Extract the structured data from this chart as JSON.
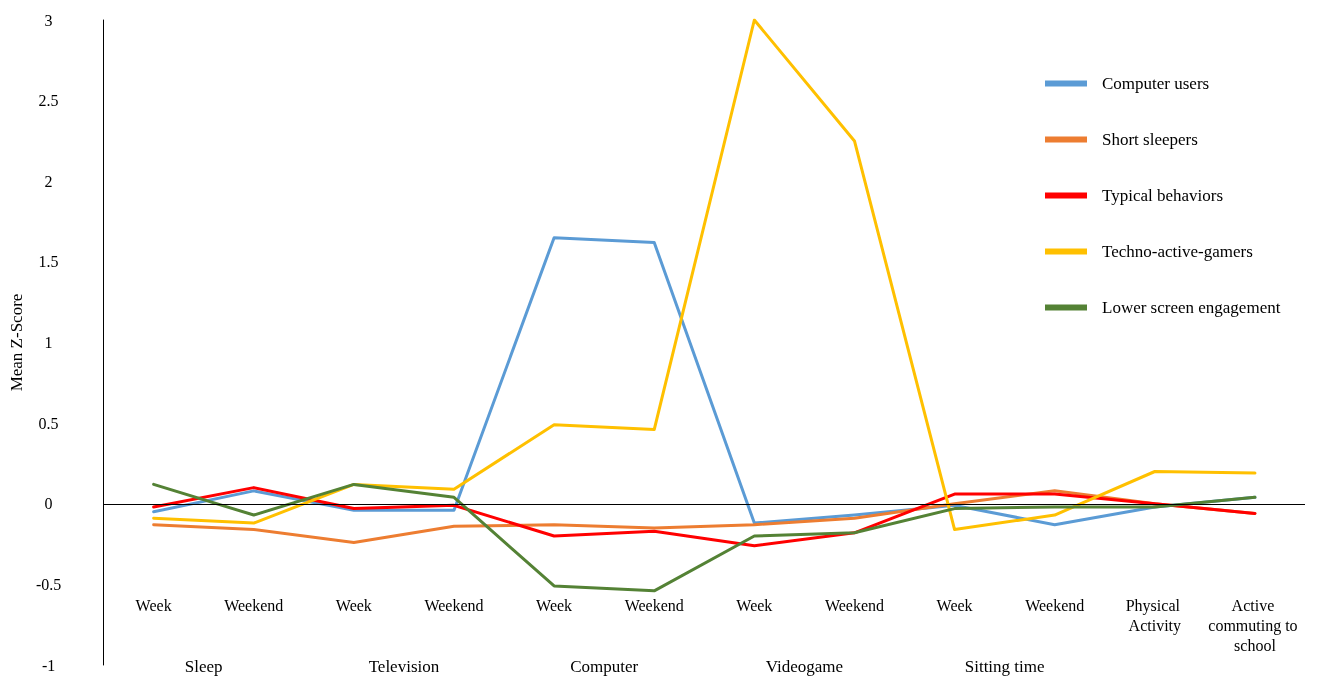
{
  "chart_data": {
    "type": "line",
    "ylabel": "Mean Z-Score",
    "categories": [
      "Week",
      "Weekend",
      "Week",
      "Weekend",
      "Week",
      "Weekend",
      "Week",
      "Weekend",
      "Week",
      "Weekend",
      "Physical Activity",
      "Active commuting to school"
    ],
    "series": [
      {
        "name": "Computer users",
        "color": "#5b9bd5",
        "values": [
          -0.05,
          0.08,
          -0.04,
          -0.04,
          1.65,
          1.62,
          -0.12,
          -0.07,
          -0.01,
          -0.13,
          -0.02,
          0.04
        ]
      },
      {
        "name": "Short sleepers",
        "color": "#ed7d31",
        "values": [
          -0.13,
          -0.16,
          -0.24,
          -0.14,
          -0.13,
          -0.15,
          -0.13,
          -0.09,
          0.0,
          0.08,
          0.0,
          -0.06
        ]
      },
      {
        "name": "Typical behaviors",
        "color": "#ff0000",
        "values": [
          -0.02,
          0.1,
          -0.03,
          -0.01,
          -0.2,
          -0.17,
          -0.26,
          -0.18,
          0.06,
          0.06,
          0.0,
          -0.06
        ]
      },
      {
        "name": "Techno-active-gamers",
        "color": "#ffc000",
        "values": [
          -0.09,
          -0.12,
          0.12,
          0.09,
          0.49,
          0.46,
          3.0,
          2.25,
          -0.16,
          -0.07,
          0.2,
          0.19
        ]
      },
      {
        "name": "Lower screen engagement",
        "color": "#548235",
        "values": [
          0.12,
          -0.07,
          0.12,
          0.04,
          -0.51,
          -0.54,
          -0.2,
          -0.18,
          -0.03,
          -0.02,
          -0.02,
          0.04
        ]
      }
    ],
    "ylim": [
      -1,
      3
    ],
    "yticks": [
      -1,
      -0.5,
      0,
      0.5,
      1,
      1.5,
      2,
      2.5,
      3
    ],
    "annotations": [
      "Sleep",
      "Television",
      "Computer",
      "Videogame",
      "Sitting time"
    ],
    "ref_lines": [
      {
        "axis": "y",
        "value": 0,
        "color": "#000000"
      }
    ],
    "legend": "top right",
    "marker": "none",
    "line_style": "solid",
    "grid": false
  }
}
